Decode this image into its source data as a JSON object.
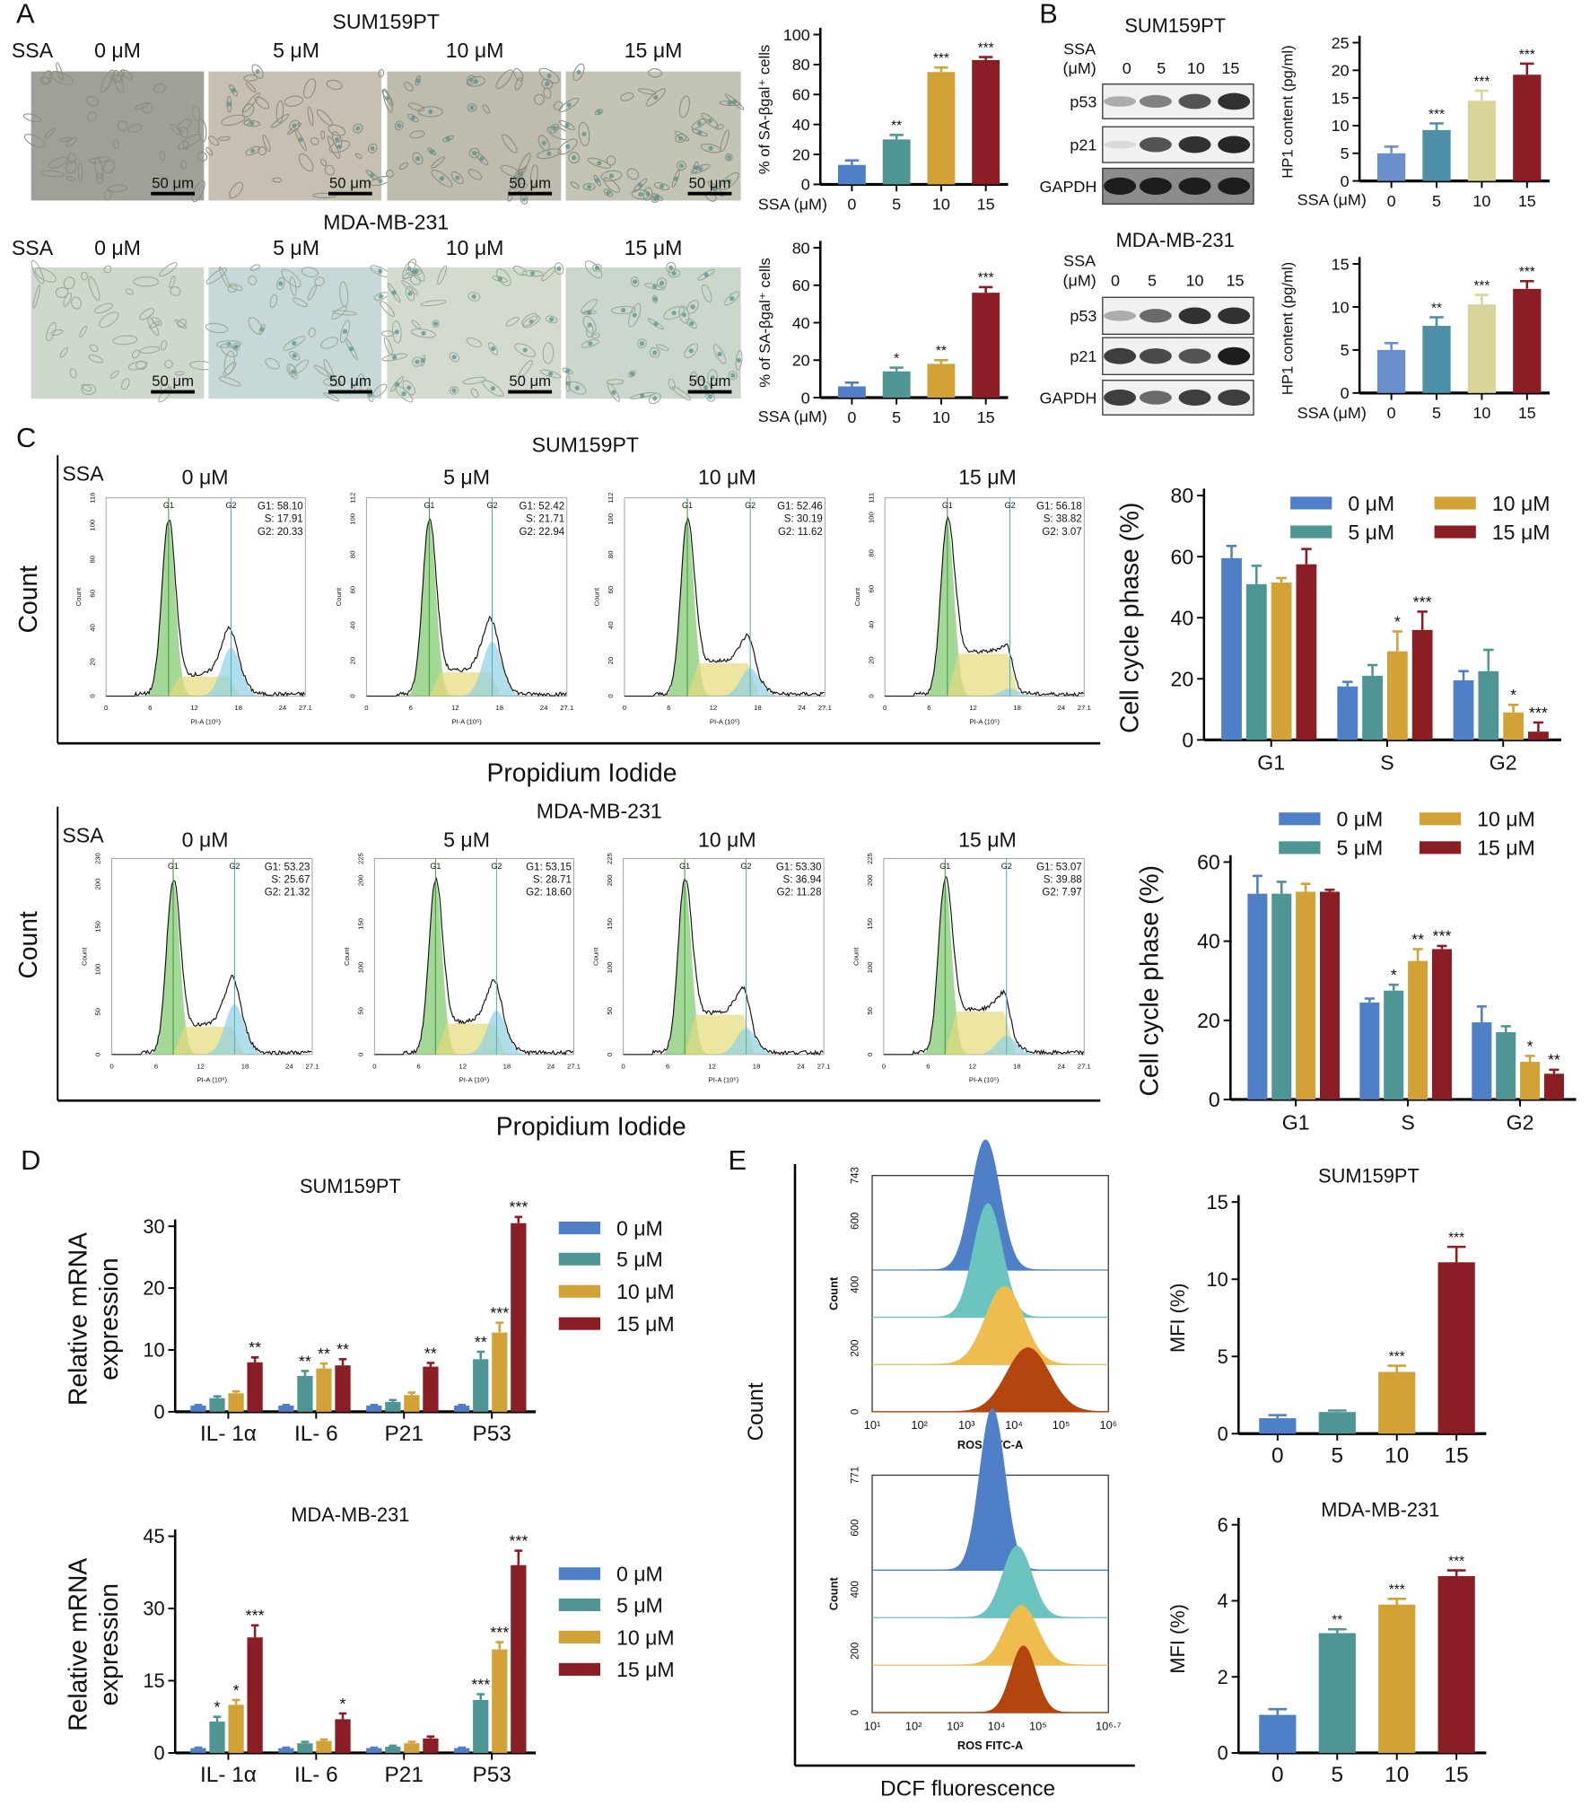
{
  "panel_letters": [
    "A",
    "B",
    "C",
    "D",
    "E"
  ],
  "panel_a": {
    "cell_lines": [
      "SUM159PT",
      "MDA-MB-231"
    ],
    "ssa_label": "SSA",
    "doses": [
      "0 μM",
      "5 μM",
      "10 μM",
      "15 μM"
    ],
    "scale_bar": "50 μm"
  },
  "panel_b": {
    "cell_lines": [
      "SUM159PT",
      "MDA-MB-231"
    ],
    "ssa_label": "SSA",
    "unit_label": "(μM)",
    "lanes": [
      "0",
      "5",
      "10",
      "15"
    ],
    "proteins": [
      "p53",
      "p21",
      "GAPDH"
    ]
  },
  "panel_c": {
    "cell_lines": [
      "SUM159PT",
      "MDA-MB-231"
    ],
    "ssa_label": "SSA",
    "doses": [
      "0 μM",
      "5 μM",
      "10 μM",
      "15 μM"
    ],
    "count_label": "Count",
    "x_label": "Propidium Iodide",
    "hist_xlabel": "PI-A (10⁶)",
    "hist_ylabel": "Count",
    "gates": [
      "G1",
      "G2"
    ],
    "xticks": [
      "0",
      "6",
      "12",
      "18",
      "24",
      "27.1"
    ],
    "histograms": [
      {
        "yticks": [
          "0",
          "20",
          "40",
          "60",
          "80",
          "100",
          "116"
        ],
        "stats": [
          "G1: 58.10",
          "S: 17.91",
          "G2: 20.33"
        ]
      },
      {
        "yticks": [
          "0",
          "20",
          "40",
          "60",
          "80",
          "100",
          "112"
        ],
        "stats": [
          "G1: 52.42",
          "S: 21.71",
          "G2: 22.94"
        ]
      },
      {
        "yticks": [
          "0",
          "20",
          "40",
          "60",
          "80",
          "100",
          "112"
        ],
        "stats": [
          "G1: 52.46",
          "S: 30.19",
          "G2: 11.62"
        ]
      },
      {
        "yticks": [
          "0",
          "20",
          "40",
          "60",
          "80",
          "100",
          "111"
        ],
        "stats": [
          "G1: 56.18",
          "S: 38.82",
          "G2: 3.07"
        ]
      },
      {
        "yticks": [
          "0",
          "50",
          "100",
          "150",
          "200",
          "230"
        ],
        "stats": [
          "G1: 53.23",
          "S: 25.67",
          "G2: 21.32"
        ]
      },
      {
        "yticks": [
          "0",
          "50",
          "100",
          "150",
          "200",
          "225"
        ],
        "stats": [
          "G1: 53.15",
          "S: 28.71",
          "G2: 18.60"
        ]
      },
      {
        "yticks": [
          "0",
          "50",
          "100",
          "150",
          "200",
          "225"
        ],
        "stats": [
          "G1: 53.30",
          "S: 36.94",
          "G2: 11.28"
        ]
      },
      {
        "yticks": [
          "0",
          "50",
          "100",
          "150",
          "200",
          "225"
        ],
        "stats": [
          "G1: 53.07",
          "S: 39.88",
          "G2: 7.97"
        ]
      }
    ]
  },
  "panel_d": {
    "legend": [
      "0 μM",
      "5 μM",
      "10 μM",
      "15 μM"
    ]
  },
  "panel_e": {
    "count_label": "Count",
    "x_label": "DCF fluorescence",
    "histograms": [
      {
        "ylabel": "Count",
        "xlabel": "ROS FITC-A",
        "yticks": [
          "0",
          "200",
          "400",
          "600",
          "743"
        ],
        "xticks": [
          "10¹",
          "10²",
          "10³",
          "10⁴",
          "10⁵",
          "10⁶"
        ]
      },
      {
        "ylabel": "Count",
        "xlabel": "ROS FITC-A",
        "yticks": [
          "0",
          "200",
          "400",
          "600",
          "771"
        ],
        "xticks": [
          "10¹",
          "10²",
          "10³",
          "10⁴",
          "10⁵",
          "10⁶·⁷"
        ]
      }
    ]
  },
  "colors": {
    "c0": "#4f7fc6",
    "c5": "#4f9593",
    "c10": "#d3a236",
    "c15": "#8b1d24",
    "b5": "#4e8fa8",
    "b10": "#d8d49a"
  },
  "chart_data": [
    {
      "type": "bar",
      "title": "SUM159PT SA-βgal",
      "ylabel": "% of SA-βgal⁺ cells",
      "xlabel": "SSA (μM)",
      "categories": [
        "0",
        "5",
        "10",
        "15"
      ],
      "values": [
        13,
        30,
        75,
        83
      ],
      "errors": [
        3,
        3,
        3,
        2
      ],
      "significance": [
        "",
        "**",
        "***",
        "***"
      ],
      "ylim": [
        0,
        100
      ],
      "yticks": [
        0,
        20,
        40,
        60,
        80,
        100
      ]
    },
    {
      "type": "bar",
      "title": "MDA-MB-231 SA-βgal",
      "ylabel": "% of SA-βgal⁺ cells",
      "xlabel": "SSA (μM)",
      "categories": [
        "0",
        "5",
        "10",
        "15"
      ],
      "values": [
        6,
        14,
        18,
        56
      ],
      "errors": [
        2,
        2,
        2,
        3
      ],
      "significance": [
        "",
        "*",
        "**",
        "***"
      ],
      "ylim": [
        0,
        80
      ],
      "yticks": [
        0,
        20,
        40,
        60,
        80
      ]
    },
    {
      "type": "bar",
      "title": "SUM159PT HP1",
      "ylabel": "HP1 content (pg/ml)",
      "xlabel": "SSA (μM)",
      "categories": [
        "0",
        "5",
        "10",
        "15"
      ],
      "values": [
        5,
        9.2,
        14.5,
        19.2
      ],
      "errors": [
        1.2,
        1.2,
        1.8,
        2
      ],
      "significance": [
        "",
        "***",
        "***",
        "***"
      ],
      "ylim": [
        0,
        25
      ],
      "yticks": [
        0,
        5,
        10,
        15,
        20,
        25
      ]
    },
    {
      "type": "bar",
      "title": "MDA-MB-231 HP1",
      "ylabel": "HP1 content (pg/ml)",
      "xlabel": "SSA (μM)",
      "categories": [
        "0",
        "5",
        "10",
        "15"
      ],
      "values": [
        5,
        7.8,
        10.3,
        12.1
      ],
      "errors": [
        0.8,
        1,
        1.1,
        0.9
      ],
      "significance": [
        "",
        "**",
        "***",
        "***"
      ],
      "ylim": [
        0,
        15
      ],
      "yticks": [
        0,
        5,
        10,
        15
      ]
    },
    {
      "type": "bar",
      "title": "SUM159PT cell cycle",
      "ylabel": "Cell cycle phase (%)",
      "xlabel": "",
      "categories": [
        "G1",
        "S",
        "G2"
      ],
      "ylim": [
        0,
        80
      ],
      "yticks": [
        0,
        20,
        40,
        60,
        80
      ],
      "series": [
        {
          "name": "0 μM",
          "values": [
            59.5,
            17.5,
            19.5
          ],
          "errors": [
            4,
            1.5,
            3
          ],
          "significance": [
            "",
            "",
            ""
          ]
        },
        {
          "name": "5 μM",
          "values": [
            51,
            21,
            22.5
          ],
          "errors": [
            6,
            3.5,
            7
          ],
          "significance": [
            "",
            "",
            ""
          ]
        },
        {
          "name": "10 μM",
          "values": [
            51.5,
            29,
            9
          ],
          "errors": [
            1.5,
            6.5,
            2.5
          ],
          "significance": [
            "",
            "*",
            "*"
          ]
        },
        {
          "name": "15 μM",
          "values": [
            57.5,
            36,
            2.7
          ],
          "errors": [
            5,
            6,
            3
          ],
          "significance": [
            "",
            "***",
            "***"
          ]
        }
      ]
    },
    {
      "type": "bar",
      "title": "MDA-MB-231 cell cycle",
      "ylabel": "Cell cycle phase (%)",
      "xlabel": "",
      "categories": [
        "G1",
        "S",
        "G2"
      ],
      "ylim": [
        0,
        60
      ],
      "yticks": [
        0,
        20,
        40,
        60
      ],
      "series": [
        {
          "name": "0 μM",
          "values": [
            52,
            24.5,
            19.5
          ],
          "errors": [
            4.5,
            1,
            4
          ],
          "significance": [
            "",
            "",
            ""
          ]
        },
        {
          "name": "5 μM",
          "values": [
            52,
            27.5,
            17
          ],
          "errors": [
            3,
            1.5,
            1.5
          ],
          "significance": [
            "",
            "*",
            ""
          ]
        },
        {
          "name": "10 μM",
          "values": [
            52.5,
            35,
            9.5
          ],
          "errors": [
            2,
            3,
            1.5
          ],
          "significance": [
            "",
            "**",
            "*"
          ]
        },
        {
          "name": "15 μM",
          "values": [
            52.5,
            38,
            6.5
          ],
          "errors": [
            0.5,
            0.8,
            1
          ],
          "significance": [
            "",
            "***",
            "**"
          ]
        }
      ]
    },
    {
      "type": "bar",
      "title": "SUM159PT",
      "ylabel": "Relative mRNA expression",
      "xlabel": "",
      "categories": [
        "IL- 1α",
        "IL- 6",
        "P21",
        "P53"
      ],
      "ylim": [
        0,
        30
      ],
      "yticks": [
        0,
        10,
        20,
        30
      ],
      "series": [
        {
          "name": "0 μM",
          "values": [
            1,
            1,
            1,
            1
          ],
          "errors": [
            0.1,
            0.1,
            0.1,
            0.1
          ],
          "significance": [
            "",
            "",
            "",
            ""
          ]
        },
        {
          "name": "5 μM",
          "values": [
            2.2,
            5.8,
            1.6,
            8.5
          ],
          "errors": [
            0.3,
            0.8,
            0.3,
            1.2
          ],
          "significance": [
            "",
            "**",
            "",
            "**"
          ]
        },
        {
          "name": "10 μM",
          "values": [
            3,
            7,
            2.7,
            12.8
          ],
          "errors": [
            0.3,
            0.8,
            0.4,
            1.6
          ],
          "significance": [
            "",
            "**",
            "",
            "***"
          ]
        },
        {
          "name": "15 μM",
          "values": [
            8,
            7.5,
            7.3,
            30.5
          ],
          "errors": [
            0.8,
            1,
            0.6,
            1
          ],
          " significance_note": "",
          "significance": [
            "**",
            "**",
            "**",
            "***"
          ]
        }
      ]
    },
    {
      "type": "bar",
      "title": "MDA-MB-231",
      "ylabel": "Relative mRNA expression",
      "xlabel": "",
      "categories": [
        "IL- 1α",
        "IL- 6",
        "P21",
        "P53"
      ],
      "ylim": [
        0,
        45
      ],
      "yticks": [
        0,
        15,
        30,
        45
      ],
      "series": [
        {
          "name": "0 μM",
          "values": [
            1,
            1,
            1,
            1
          ],
          "errors": [
            0.1,
            0.1,
            0.1,
            0.1
          ],
          "significance": [
            "",
            "",
            "",
            ""
          ]
        },
        {
          "name": "5 μM",
          "values": [
            6.5,
            2,
            1.3,
            11
          ],
          "errors": [
            1,
            0.3,
            0.2,
            1.2
          ],
          "significance": [
            "*",
            "",
            "",
            "***"
          ]
        },
        {
          "name": "10 μM",
          "values": [
            10,
            2.5,
            2,
            21.5
          ],
          "errors": [
            1,
            0.3,
            0.3,
            1.5
          ],
          "significance": [
            "*",
            "",
            "",
            "***"
          ]
        },
        {
          "name": "15 μM",
          "values": [
            24,
            7,
            3,
            39
          ],
          "errors": [
            2.5,
            1.2,
            0.4,
            3
          ],
          "significance": [
            "***",
            "*",
            "",
            "***"
          ]
        }
      ]
    },
    {
      "type": "bar",
      "title": "SUM159PT",
      "ylabel": "MFI (%)",
      "xlabel": "",
      "categories": [
        "0",
        "5",
        "10",
        "15"
      ],
      "values": [
        1,
        1.4,
        4,
        11.1
      ],
      "errors": [
        0.2,
        0.1,
        0.4,
        1
      ],
      "significance": [
        "",
        "",
        "***",
        "***"
      ],
      "ylim": [
        0,
        15
      ],
      "yticks": [
        0,
        5,
        10,
        15
      ]
    },
    {
      "type": "bar",
      "title": "MDA-MB-231",
      "ylabel": "MFI (%)",
      "xlabel": "",
      "categories": [
        "0",
        "5",
        "10",
        "15"
      ],
      "values": [
        1,
        3.15,
        3.9,
        4.65
      ],
      "errors": [
        0.15,
        0.1,
        0.15,
        0.15
      ],
      "significance": [
        "",
        "**",
        "***",
        "***"
      ],
      "ylim": [
        0,
        6
      ],
      "yticks": [
        0,
        2,
        4,
        6
      ]
    }
  ]
}
